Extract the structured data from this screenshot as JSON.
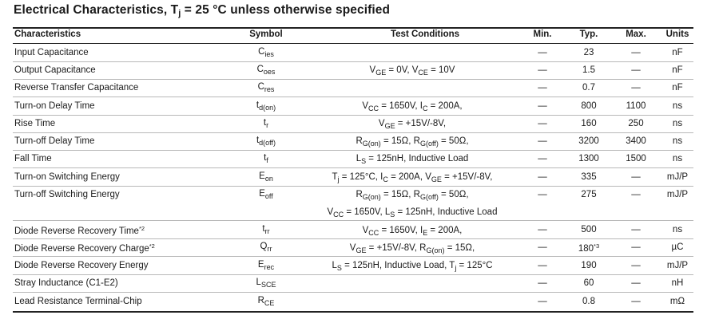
{
  "title": {
    "main": "Electrical Characteristics, T",
    "sub": "j",
    "rest": " = 25 °C unless otherwise specified"
  },
  "headers": {
    "characteristics": "Characteristics",
    "symbol": "Symbol",
    "conditions": "Test Conditions",
    "min": "Min.",
    "typ": "Typ.",
    "max": "Max.",
    "units": "Units"
  },
  "rows": [
    {
      "name": "Input Capacitance",
      "sym": "C",
      "sym_sub": "ies",
      "min": "—",
      "typ": "23",
      "max": "—",
      "unit": "nF"
    },
    {
      "name": "Output Capacitance",
      "sym": "C",
      "sym_sub": "oes",
      "min": "—",
      "typ": "1.5",
      "max": "—",
      "unit": "nF"
    },
    {
      "name": "Reverse Transfer Capacitance",
      "sym": "C",
      "sym_sub": "res",
      "min": "—",
      "typ": "0.7",
      "max": "—",
      "unit": "nF"
    },
    {
      "name": "Turn-on Delay Time",
      "sym": "t",
      "sym_sub": "d(on)",
      "min": "—",
      "typ": "800",
      "max": "1100",
      "unit": "ns"
    },
    {
      "name": "Rise Time",
      "sym": "t",
      "sym_sub": "r",
      "min": "—",
      "typ": "160",
      "max": "250",
      "unit": "ns"
    },
    {
      "name": "Turn-off Delay Time",
      "sym": "t",
      "sym_sub": "d(off)",
      "min": "—",
      "typ": "3200",
      "max": "3400",
      "unit": "ns"
    },
    {
      "name": "Fall Time",
      "sym": "t",
      "sym_sub": "f",
      "min": "—",
      "typ": "1300",
      "max": "1500",
      "unit": "ns"
    },
    {
      "name": "Turn-on Switching Energy",
      "sym": "E",
      "sym_sub": "on",
      "min": "—",
      "typ": "335",
      "max": "—",
      "unit": "mJ/P"
    },
    {
      "name": "Turn-off Switching Energy",
      "sym": "E",
      "sym_sub": "off",
      "min": "—",
      "typ": "275",
      "max": "—",
      "unit": "mJ/P"
    },
    {
      "name": "Diode Reverse Recovery Time",
      "name_sup": "*2",
      "sym": "t",
      "sym_sub": "rr",
      "min": "—",
      "typ": "500",
      "max": "—",
      "unit": "ns"
    },
    {
      "name": "Diode Reverse Recovery Charge",
      "name_sup": "*2",
      "sym": "Q",
      "sym_sub": "rr",
      "min": "—",
      "typ": "180",
      "typ_sup": "*3",
      "max": "—",
      "unit": "µC"
    },
    {
      "name": "Diode Reverse Recovery Energy",
      "sym": "E",
      "sym_sub": "rec",
      "min": "—",
      "typ": "190",
      "max": "—",
      "unit": "mJ/P"
    },
    {
      "name": "Stray Inductance (C1-E2)",
      "sym": "L",
      "sym_sub": "SCE",
      "min": "—",
      "typ": "60",
      "max": "—",
      "unit": "nH"
    },
    {
      "name": "Lead Resistance Terminal-Chip",
      "sym": "R",
      "sym_sub": "CE",
      "min": "—",
      "typ": "0.8",
      "max": "—",
      "unit": "mΩ"
    }
  ],
  "conditions": [
    {
      "parts": [
        [
          "V",
          ""
        ],
        [
          "GE",
          "sub"
        ],
        [
          " = 0V, V",
          ""
        ],
        [
          "CE",
          "sub"
        ],
        [
          " = 10V",
          ""
        ]
      ]
    },
    {
      "parts": [
        [
          "V",
          ""
        ],
        [
          "CC",
          "sub"
        ],
        [
          " = 1650V, I",
          ""
        ],
        [
          "C",
          "sub"
        ],
        [
          " = 200A,",
          ""
        ]
      ]
    },
    {
      "parts": [
        [
          "V",
          ""
        ],
        [
          "GE",
          "sub"
        ],
        [
          " = +15V/-8V,",
          ""
        ]
      ]
    },
    {
      "parts": [
        [
          "R",
          ""
        ],
        [
          "G(on)",
          "sub"
        ],
        [
          " = 15Ω, R",
          ""
        ],
        [
          "G(off)",
          "sub"
        ],
        [
          " = 50Ω,",
          ""
        ]
      ]
    },
    {
      "parts": [
        [
          "L",
          ""
        ],
        [
          "S",
          "sub"
        ],
        [
          " = 125nH, Inductive Load",
          ""
        ]
      ]
    },
    {
      "parts": [
        [
          "T",
          ""
        ],
        [
          "j",
          "sub"
        ],
        [
          " = 125°C, I",
          ""
        ],
        [
          "C",
          "sub"
        ],
        [
          " = 200A, V",
          ""
        ],
        [
          "GE",
          "sub"
        ],
        [
          " = +15V/-8V,",
          ""
        ]
      ]
    },
    {
      "parts": [
        [
          "R",
          ""
        ],
        [
          "G(on)",
          "sub"
        ],
        [
          " = 15Ω, R",
          ""
        ],
        [
          "G(off)",
          "sub"
        ],
        [
          " = 50Ω,",
          ""
        ]
      ]
    },
    {
      "parts": [
        [
          "V",
          ""
        ],
        [
          "CC",
          "sub"
        ],
        [
          " = 1650V, L",
          ""
        ],
        [
          "S",
          "sub"
        ],
        [
          " = 125nH, Inductive Load",
          ""
        ]
      ]
    },
    {
      "parts": [
        [
          "V",
          ""
        ],
        [
          "CC",
          "sub"
        ],
        [
          " = 1650V, I",
          ""
        ],
        [
          "E",
          "sub"
        ],
        [
          " = 200A,",
          ""
        ]
      ]
    },
    {
      "parts": [
        [
          "V",
          ""
        ],
        [
          "GE",
          "sub"
        ],
        [
          " = +15V/-8V, R",
          ""
        ],
        [
          "G(on)",
          "sub"
        ],
        [
          " = 15Ω,",
          ""
        ]
      ]
    },
    {
      "parts": [
        [
          "L",
          ""
        ],
        [
          "S",
          "sub"
        ],
        [
          " = 125nH, Inductive Load, T",
          ""
        ],
        [
          "j",
          "sub"
        ],
        [
          " = 125°C",
          ""
        ]
      ]
    }
  ]
}
